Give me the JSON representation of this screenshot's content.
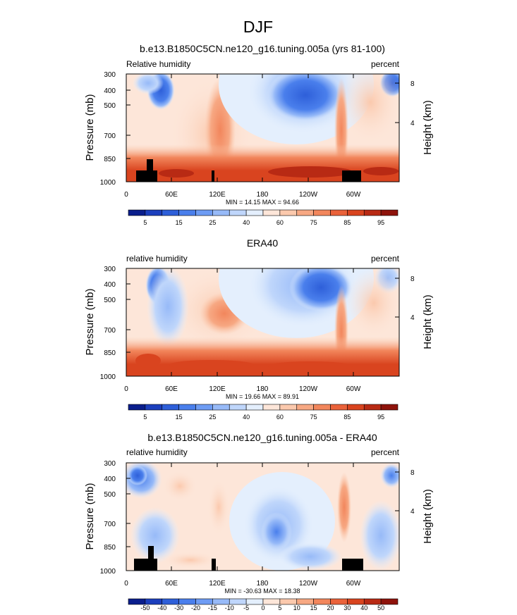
{
  "figure_title": "DJF",
  "chart_data": [
    {
      "type": "heatmap",
      "title": "b.e13.B1850C5CN.ne120_g16.tuning.005a (yrs 81-100)",
      "left_string": "Relative humidity",
      "right_string": "percent",
      "xlabel": "",
      "ylabel": "Pressure (mb)",
      "ylabel_right": "Height (km)",
      "x_tick_labels": [
        "0",
        "60E",
        "120E",
        "180",
        "120W",
        "60W"
      ],
      "y_tick_labels": [
        "300",
        "400",
        "500",
        "700",
        "850",
        "1000"
      ],
      "y_right_tick_labels": [
        "8",
        "4"
      ],
      "stats": "MIN =  14.15  MAX =  94.66",
      "colorbar_labels": [
        "5",
        "15",
        "25",
        "40",
        "60",
        "75",
        "85",
        "95"
      ],
      "colorbar_colors": [
        "#0a1e8c",
        "#1c3fbd",
        "#2e5fd9",
        "#4a7fec",
        "#6e9cf4",
        "#97baf8",
        "#bfd6fb",
        "#e4effd",
        "#fde6d9",
        "#fbc9ad",
        "#f7a883",
        "#f2865c",
        "#ea623a",
        "#d9441f",
        "#b82a14",
        "#8e130b"
      ],
      "terrain": true
    },
    {
      "type": "heatmap",
      "title": "ERA40",
      "left_string": "relative humidity",
      "right_string": "percent",
      "xlabel": "",
      "ylabel": "Pressure (mb)",
      "ylabel_right": "Height (km)",
      "x_tick_labels": [
        "0",
        "60E",
        "120E",
        "180",
        "120W",
        "60W"
      ],
      "y_tick_labels": [
        "300",
        "400",
        "500",
        "700",
        "850",
        "1000"
      ],
      "y_right_tick_labels": [
        "8",
        "4"
      ],
      "stats": "MIN =  19.66  MAX =  89.91",
      "colorbar_labels": [
        "5",
        "15",
        "25",
        "40",
        "60",
        "75",
        "85",
        "95"
      ],
      "colorbar_colors": [
        "#0a1e8c",
        "#1c3fbd",
        "#2e5fd9",
        "#4a7fec",
        "#6e9cf4",
        "#97baf8",
        "#bfd6fb",
        "#e4effd",
        "#fde6d9",
        "#fbc9ad",
        "#f7a883",
        "#f2865c",
        "#ea623a",
        "#d9441f",
        "#b82a14",
        "#8e130b"
      ],
      "terrain": false
    },
    {
      "type": "heatmap",
      "title": "b.e13.B1850C5CN.ne120_g16.tuning.005a - ERA40",
      "left_string": "relative humidity",
      "right_string": "percent",
      "xlabel": "",
      "ylabel": "Pressure (mb)",
      "ylabel_right": "Height (km)",
      "x_tick_labels": [
        "0",
        "60E",
        "120E",
        "180",
        "120W",
        "60W"
      ],
      "y_tick_labels": [
        "300",
        "400",
        "500",
        "700",
        "850",
        "1000"
      ],
      "y_right_tick_labels": [
        "8",
        "4"
      ],
      "stats": "MIN = -30.63  MAX =  18.38",
      "colorbar_labels": [
        "-50",
        "-40",
        "-30",
        "-20",
        "-15",
        "-10",
        "-5",
        "0",
        "5",
        "10",
        "15",
        "20",
        "30",
        "40",
        "50"
      ],
      "colorbar_colors": [
        "#0a1e8c",
        "#1c3fbd",
        "#2e5fd9",
        "#4a7fec",
        "#6e9cf4",
        "#97baf8",
        "#bfd6fb",
        "#e4effd",
        "#fde6d9",
        "#fbc9ad",
        "#f7a883",
        "#f2865c",
        "#ea623a",
        "#d9441f",
        "#b82a14",
        "#8e130b"
      ],
      "terrain": true
    }
  ]
}
